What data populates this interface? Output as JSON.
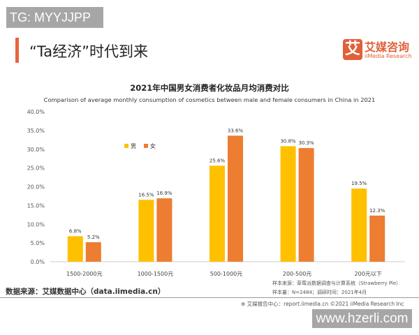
{
  "watermark_top": "TG: MYYJJPP",
  "page_title": "“Ta经济”时代到来",
  "brand": {
    "logo_char": "艾",
    "name": "艾媒咨询",
    "name_en": "iiMedia Research"
  },
  "source": "数据来源：艾媒数据中心（data.iimedia.cn）",
  "note1": "样本来源：草莓派数据调查与计算系统（Strawberry Pie）",
  "note2": "样本量：N=2484；调研时间：2021年4月",
  "footer": "⊕ 艾媒报告中心：report.iimedia.cn  ©2021  iiMedia Research Inc",
  "watermark_bottom": "www.hzerli.com",
  "chart_data": {
    "type": "bar",
    "title": "2021年中国男女消费者化妆品月均消费对比",
    "subtitle": "Comparison of average monthly consumption of cosmetics between male and female consumers in China in 2021",
    "categories": [
      "1500-2000元",
      "1000-1500元",
      "500-1000元",
      "200-500元",
      "200元以下"
    ],
    "series": [
      {
        "name": "男",
        "color": "#FFC000",
        "values": [
          6.8,
          16.5,
          25.6,
          30.8,
          19.5
        ],
        "labels": [
          "6.8%",
          "16.5%",
          "25.6%",
          "30.8%",
          "19.5%"
        ]
      },
      {
        "name": "女",
        "color": "#ED7D31",
        "values": [
          5.2,
          16.9,
          33.6,
          30.3,
          12.3
        ],
        "labels": [
          "5.2%",
          "16.9%",
          "33.6%",
          "30.3%",
          "12.3%"
        ]
      }
    ],
    "ylim": [
      0,
      40
    ],
    "yticks": [
      "0.0%",
      "5.0%",
      "10.0%",
      "15.0%",
      "20.0%",
      "25.0%",
      "30.0%",
      "35.0%",
      "40.0%"
    ],
    "legend": "top-left",
    "grid": false
  }
}
